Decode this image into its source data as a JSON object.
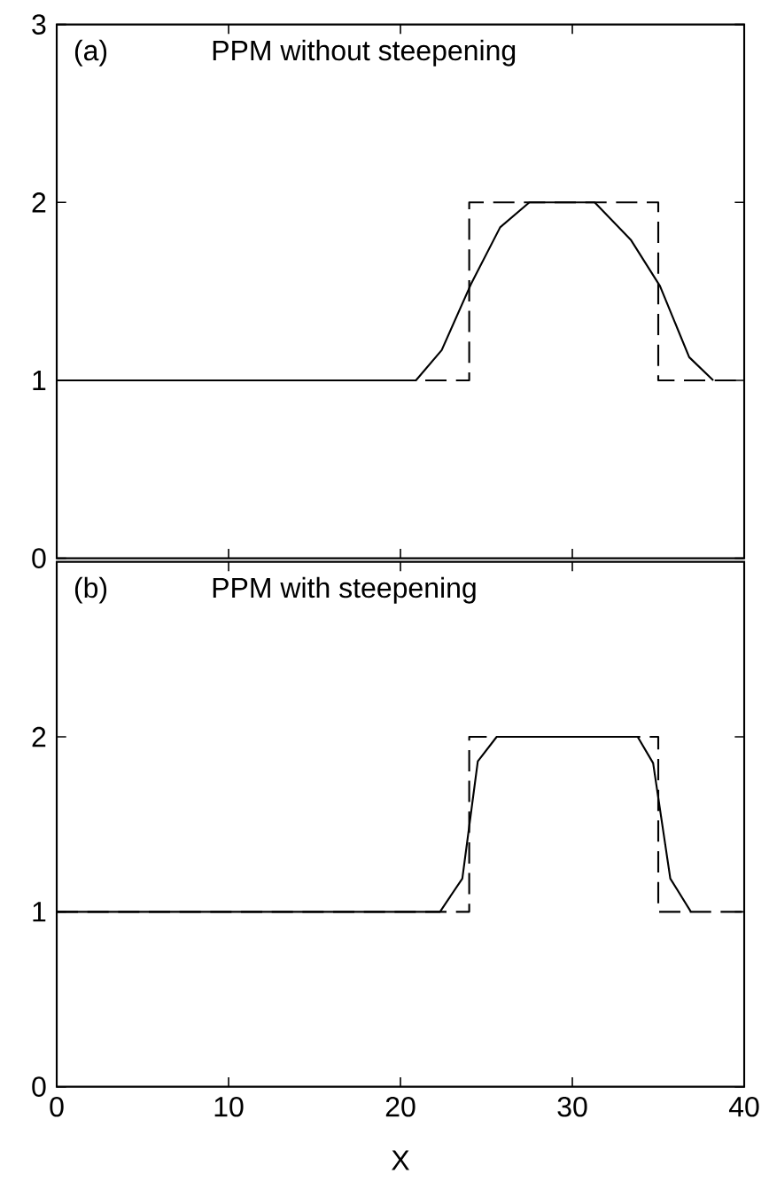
{
  "chart_data": [
    {
      "type": "line",
      "annotations": [
        "(a)",
        "PPM without steepening"
      ],
      "xlim": [
        0,
        40
      ],
      "xticks": [
        0,
        10,
        20,
        30,
        40
      ],
      "ylim": [
        0,
        3
      ],
      "yticks": [
        0,
        1,
        2,
        3
      ],
      "tick_labels": "y",
      "series": [
        {
          "color": "#000000",
          "line_style": "dashed",
          "x": [
            0,
            24,
            24,
            35,
            35,
            40
          ],
          "values": [
            1,
            1,
            2,
            2,
            1,
            1
          ]
        },
        {
          "color": "#000000",
          "line_style": "solid",
          "x": [
            0,
            20.9,
            22.4,
            24.1,
            25.8,
            27.5,
            31.3,
            33.4,
            35.1,
            36.8,
            38.2
          ],
          "values": [
            1,
            1,
            1.17,
            1.54,
            1.86,
            2,
            2,
            1.79,
            1.53,
            1.13,
            1
          ]
        }
      ]
    },
    {
      "type": "line",
      "annotations": [
        "(b)",
        "PPM with steepening"
      ],
      "xlabel": "X",
      "xlim": [
        0,
        40
      ],
      "xticks": [
        0,
        10,
        20,
        30,
        40
      ],
      "ylim": [
        0,
        3
      ],
      "yticks": [
        0,
        1,
        2
      ],
      "series": [
        {
          "color": "#000000",
          "line_style": "dashed",
          "x": [
            0,
            24,
            24,
            35,
            35,
            40
          ],
          "values": [
            1,
            1,
            2,
            2,
            1,
            1
          ]
        },
        {
          "color": "#000000",
          "line_style": "solid",
          "x": [
            0,
            22.3,
            23.6,
            24.5,
            25.6,
            33.8,
            34.7,
            35.7,
            36.9
          ],
          "values": [
            1,
            1,
            1.19,
            1.86,
            2,
            2,
            1.85,
            1.19,
            1
          ]
        }
      ]
    }
  ]
}
